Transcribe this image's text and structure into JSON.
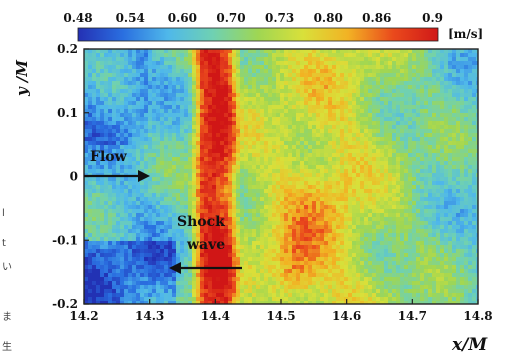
{
  "chart_data": {
    "type": "heatmap",
    "xlabel": "x/M",
    "ylabel": "y /M",
    "xlim": [
      14.2,
      14.8
    ],
    "ylim": [
      -0.2,
      0.2
    ],
    "x_ticks": [
      "14.2",
      "14.3",
      "14.4",
      "14.5",
      "14.6",
      "14.7",
      "14.8"
    ],
    "y_ticks": [
      "0.2",
      "0.1",
      "0",
      "-0.1",
      "-0.2"
    ],
    "colorbar": {
      "ticks": [
        "0.48",
        "0.54",
        "0.60",
        "0.70",
        "0.73",
        "0.80",
        "0.86",
        "0.9"
      ],
      "unit": "[m/s]",
      "range": [
        0.48,
        0.9
      ],
      "colors": [
        "#2430b4",
        "#2a6fe0",
        "#4fb8ea",
        "#6fd1b2",
        "#9fd653",
        "#d9e03a",
        "#f2b224",
        "#ea4a1c",
        "#d01818"
      ]
    },
    "field_description_profile": [
      {
        "x": 14.2,
        "value": 0.6
      },
      {
        "x": 14.3,
        "value": 0.6
      },
      {
        "x": 14.36,
        "value": 0.64
      },
      {
        "x": 14.38,
        "value": 0.86
      },
      {
        "x": 14.4,
        "value": 0.9
      },
      {
        "x": 14.42,
        "value": 0.86
      },
      {
        "x": 14.44,
        "value": 0.7
      },
      {
        "x": 14.5,
        "value": 0.72
      },
      {
        "x": 14.6,
        "value": 0.74
      },
      {
        "x": 14.7,
        "value": 0.66
      },
      {
        "x": 14.8,
        "value": 0.62
      }
    ],
    "annotations": [
      {
        "text": "Flow",
        "direction": "right",
        "x": 14.24,
        "y": 0.0
      },
      {
        "text_line1": "Shock",
        "text_line2": "wave",
        "direction": "left",
        "x": 14.42,
        "y": -0.1
      }
    ]
  },
  "edge_fragments": [
    "l",
    "t",
    "い",
    "ま",
    "生"
  ]
}
